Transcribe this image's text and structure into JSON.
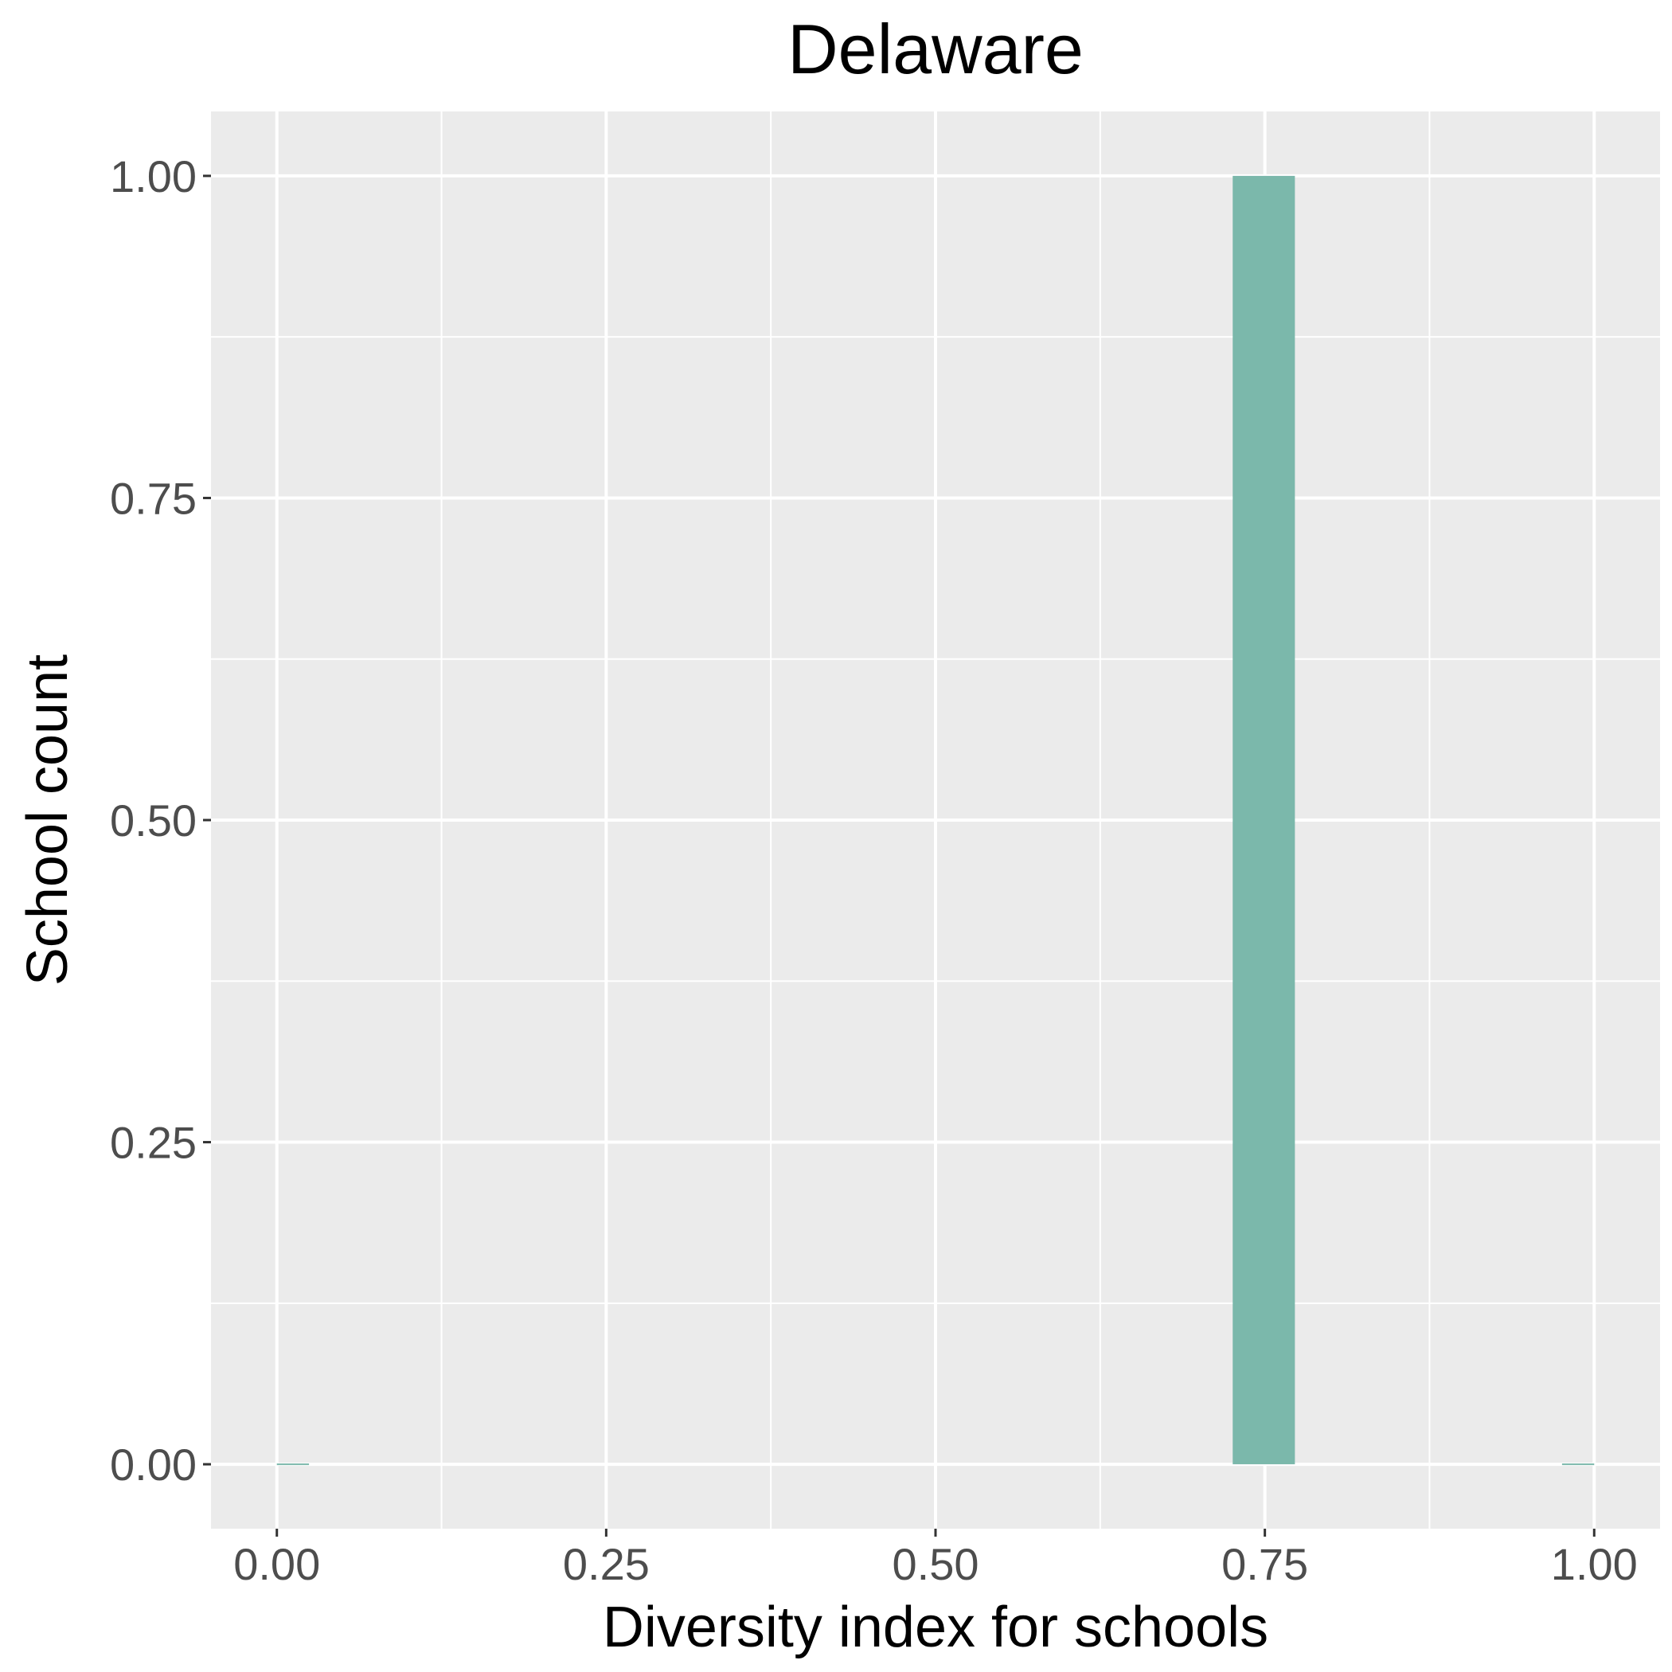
{
  "chart_data": {
    "type": "bar",
    "title": "Delaware",
    "xlabel": "Diversity index for schools",
    "ylabel": "School count",
    "xlim": [
      -0.05,
      1.05
    ],
    "ylim": [
      -0.05,
      1.05
    ],
    "x_ticks": [
      0.0,
      0.25,
      0.5,
      0.75,
      1.0
    ],
    "x_tick_labels": [
      "0.00",
      "0.25",
      "0.50",
      "0.75",
      "1.00"
    ],
    "y_ticks": [
      0.0,
      0.25,
      0.5,
      0.75,
      1.0
    ],
    "y_tick_labels": [
      "0.00",
      "0.25",
      "0.50",
      "0.75",
      "1.00"
    ],
    "bins": [
      {
        "x_start": 0.0,
        "x_end": 0.0244,
        "count": 0
      },
      {
        "x_start": 0.7256,
        "x_end": 0.7728,
        "count": 1
      },
      {
        "x_start": 0.9756,
        "x_end": 1.0,
        "count": 0
      }
    ],
    "grid": true,
    "colors": {
      "panel_background": "#ebebeb",
      "grid_line": "#ffffff",
      "bar_fill": "#7bb8ab",
      "tick_text": "#4d4d4d",
      "tick_mark": "#333333"
    }
  }
}
